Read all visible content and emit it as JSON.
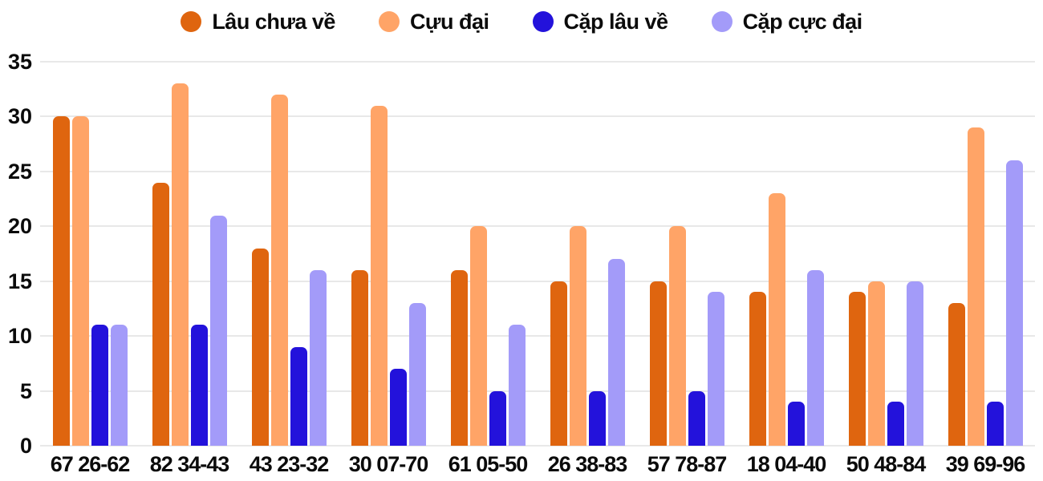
{
  "chart_data": {
    "type": "bar",
    "title": "",
    "categories": [
      "67 26-62",
      "82 34-43",
      "43 23-32",
      "30 07-70",
      "61 05-50",
      "26 38-83",
      "57 78-87",
      "18 04-40",
      "50 48-84",
      "39 69-96"
    ],
    "series": [
      {
        "name": "Lâu chưa về",
        "color": "#df650f",
        "values": [
          30,
          24,
          18,
          16,
          16,
          15,
          15,
          14,
          14,
          13
        ]
      },
      {
        "name": "Cựu đại",
        "color": "#ffa467",
        "values": [
          30,
          33,
          32,
          31,
          20,
          20,
          20,
          23,
          15,
          29
        ]
      },
      {
        "name": "Cặp lâu về",
        "color": "#2312db",
        "values": [
          11,
          11,
          9,
          7,
          5,
          5,
          5,
          4,
          4,
          4
        ]
      },
      {
        "name": "Cặp cực đại",
        "color": "#a39bf9",
        "values": [
          11,
          21,
          16,
          13,
          11,
          17,
          14,
          16,
          15,
          26
        ]
      }
    ],
    "xlabel": "",
    "ylabel": "",
    "ylim": [
      0,
      35
    ],
    "yticks": [
      0,
      5,
      10,
      15,
      20,
      25,
      30,
      35
    ],
    "grid": true,
    "legend_position": "top",
    "colors": {
      "background": "#ffffff",
      "gridline": "#e8e8e8",
      "text": "#0b0b0b"
    }
  }
}
